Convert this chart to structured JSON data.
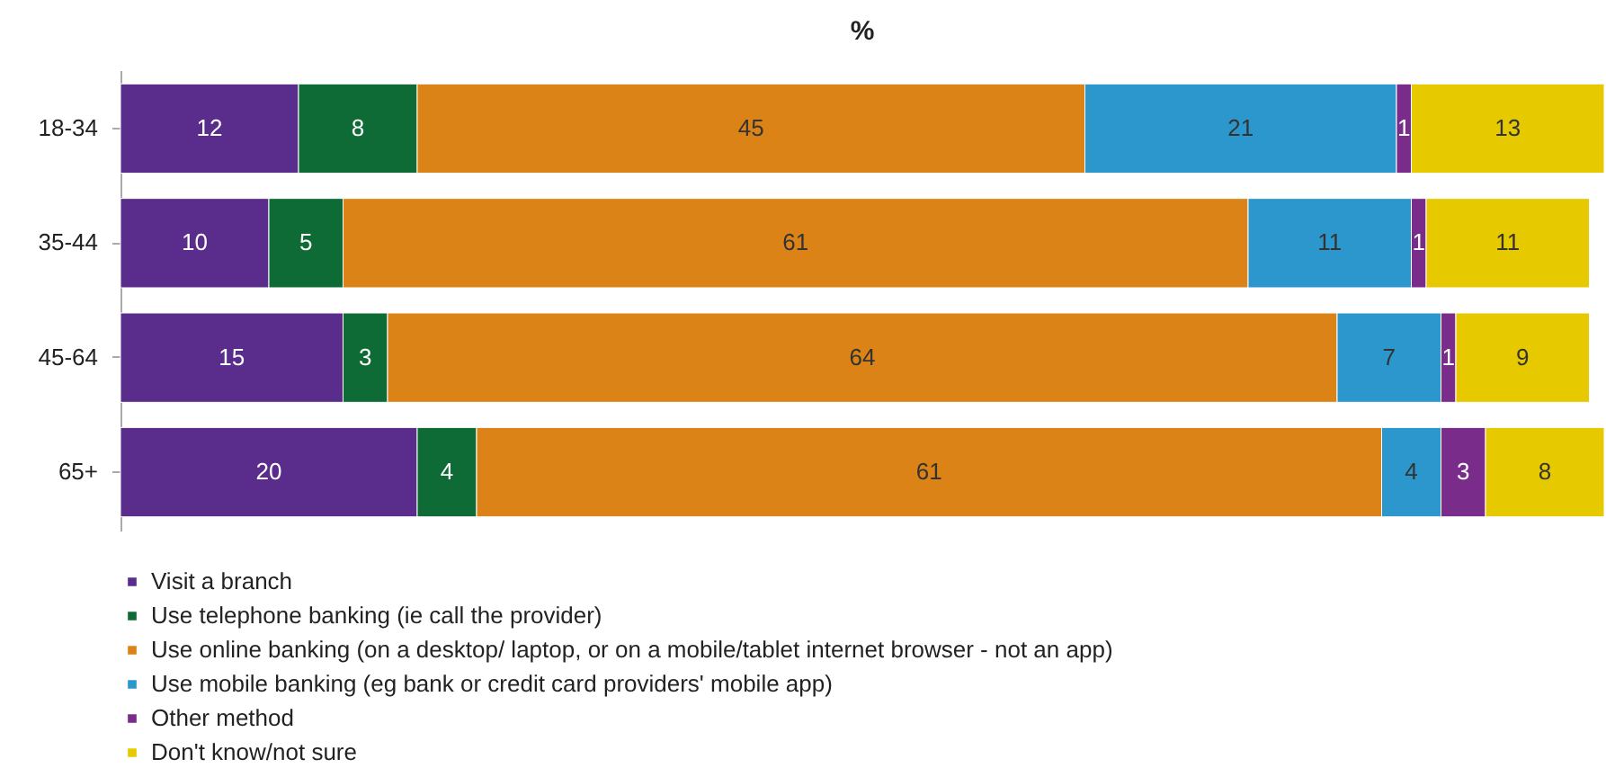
{
  "chart_data": {
    "type": "bar",
    "orientation": "horizontal",
    "stacked": true,
    "title": "%",
    "categories": [
      "18-34",
      "35-44",
      "45-64",
      "65+"
    ],
    "series": [
      {
        "name": "Visit a branch",
        "color": "#5a2d8c",
        "values": [
          12,
          10,
          15,
          20
        ]
      },
      {
        "name": "Use telephone banking (ie call the provider)",
        "color": "#0f6b35",
        "values": [
          8,
          5,
          3,
          4
        ]
      },
      {
        "name": "Use online banking (on a desktop/ laptop, or on a mobile/tablet internet browser - not an app)",
        "color": "#dc8317",
        "values": [
          45,
          61,
          64,
          61
        ]
      },
      {
        "name": "Use mobile banking (eg bank or credit card providers' mobile app)",
        "color": "#2b97cc",
        "values": [
          21,
          11,
          7,
          4
        ]
      },
      {
        "name": "Other method",
        "color": "#7a2c8a",
        "values": [
          1,
          1,
          1,
          3
        ]
      },
      {
        "name": "Don't know/not sure",
        "color": "#e7c900",
        "values": [
          13,
          11,
          9,
          8
        ]
      }
    ],
    "data_labels": true,
    "legend": "bottom"
  }
}
